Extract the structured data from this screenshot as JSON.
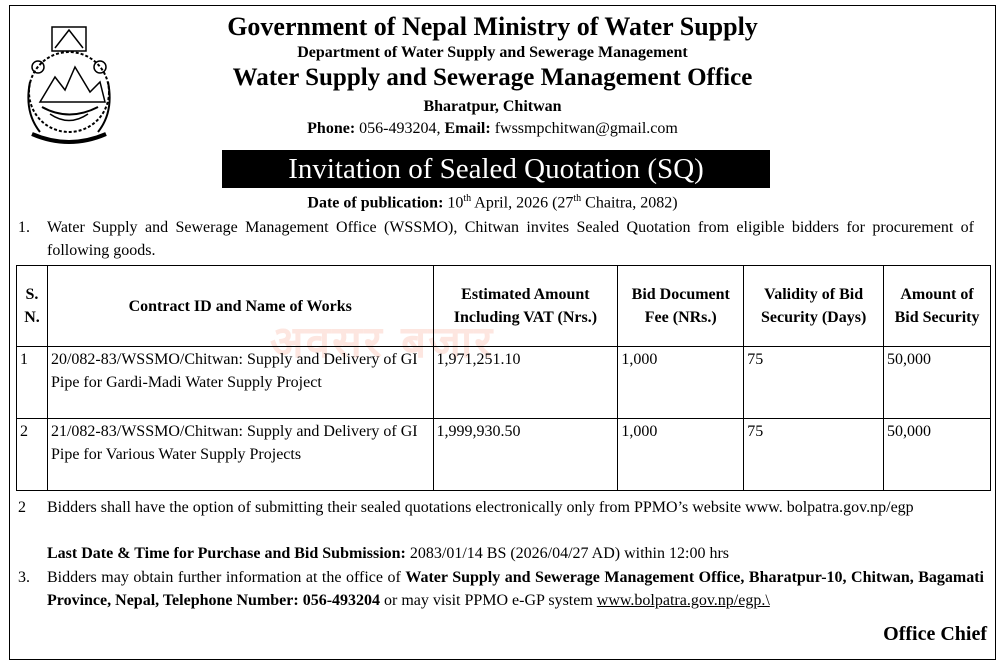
{
  "header": {
    "line1": "Government of Nepal Ministry of Water Supply",
    "line2": "Department of Water Supply and Sewerage Management",
    "line3": "Water Supply and Sewerage Management Office",
    "line4": "Bharatpur, Chitwan",
    "phone_label": "Phone:",
    "phone": " 056-493204, ",
    "email_label": "Email:",
    "email": " fwssmpchitwan@gmail.com"
  },
  "banner": "Invitation of Sealed Quotation (SQ)",
  "publication": {
    "label": "Date of publication:",
    "day": " 10",
    "sup1": "th",
    "rest1": " April, 2026 (27",
    "sup2": "th",
    "rest2": " Chaitra, 2082)"
  },
  "item1": {
    "num": "1.",
    "text": "Water Supply and Sewerage Management Office (WSSMO), Chitwan invites Sealed Quotation from eligible bidders for procurement of following goods."
  },
  "table": {
    "headers": [
      "S. N.",
      "Contract ID and Name of Works",
      "Estimated Amount Including VAT (Nrs.)",
      "Bid Document Fee (NRs.)",
      "Validity of Bid Security (Days)",
      "Amount of Bid Security"
    ],
    "rows": [
      [
        "1",
        "20/082-83/WSSMO/Chitwan: Supply and Delivery of GI Pipe for Gardi-Madi Water Supply Project",
        "1,971,251.10",
        "1,000",
        "75",
        "50,000"
      ],
      [
        "2",
        "21/082-83/WSSMO/Chitwan: Supply and Delivery of GI Pipe for Various Water Supply Projects",
        "1,999,930.50",
        "1,000",
        "75",
        "50,000"
      ]
    ]
  },
  "item2": {
    "num": "2",
    "text": "Bidders shall have the option of submitting their sealed quotations electronically only from PPMO’s website www. bolpatra.gov.np/egp",
    "deadline_label": "Last Date & Time for Purchase and Bid Submission:",
    "deadline": " 2083/01/14 BS (2026/04/27 AD) within 12:00 hrs"
  },
  "item3": {
    "num": "3.",
    "text_a": "Bidders may obtain further information at the office of ",
    "text_bold": "Water Supply and Sewerage Management Office, Bharatpur-10, Chitwan, Bagamati Province, Nepal, Telephone Number: 056-493204",
    "text_b": " or may visit PPMO e-GP system ",
    "link": "www.bolpatra.gov.np/egp.\\"
  },
  "signature": "Office Chief"
}
